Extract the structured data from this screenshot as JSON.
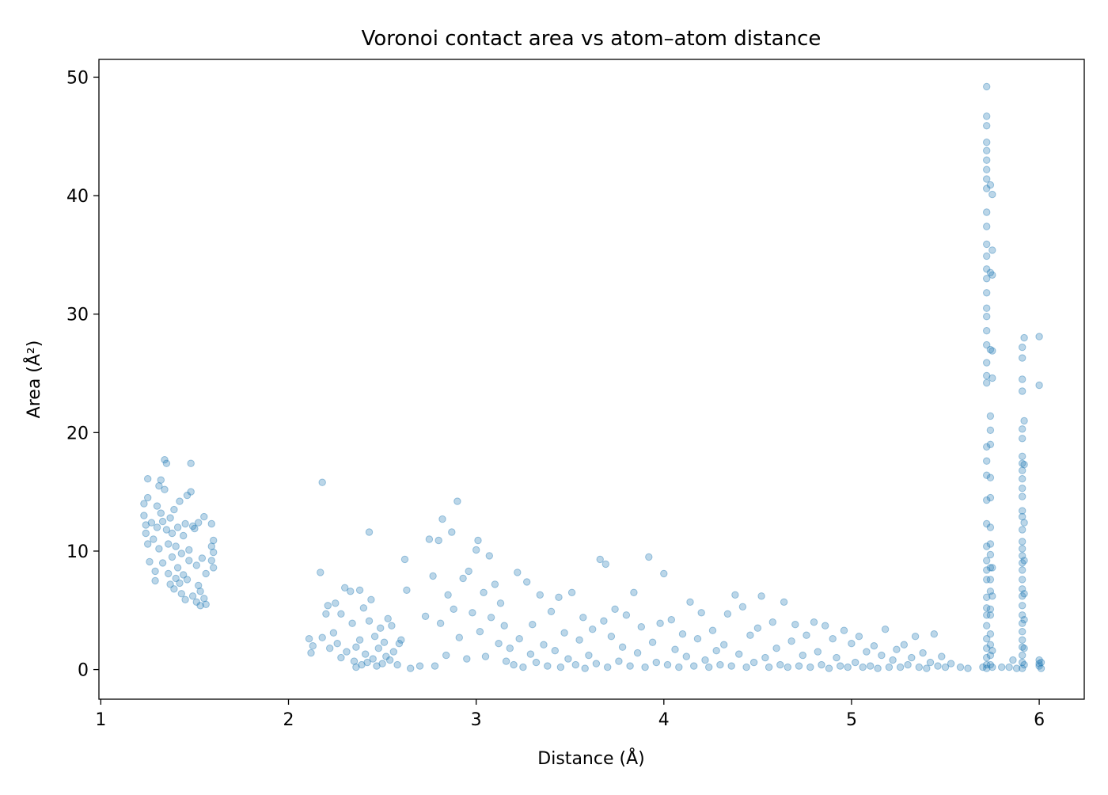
{
  "chart_data": {
    "type": "scatter",
    "title": "Voronoi contact area vs atom–atom distance",
    "xlabel": "Distance (Å)",
    "ylabel": "Area (Å²)",
    "xlim": [
      0.99,
      6.24
    ],
    "ylim": [
      -2.5,
      51.5
    ],
    "xticks": [
      1,
      2,
      3,
      4,
      5,
      6
    ],
    "yticks": [
      0,
      10,
      20,
      30,
      40,
      50
    ],
    "grid": false,
    "legend": "none",
    "marker_color": "#1f77b4",
    "marker_opacity": 0.3,
    "points": [
      [
        1.23,
        14.0
      ],
      [
        1.23,
        13.0
      ],
      [
        1.24,
        12.2
      ],
      [
        1.24,
        11.5
      ],
      [
        1.25,
        16.1
      ],
      [
        1.25,
        14.5
      ],
      [
        1.25,
        10.6
      ],
      [
        1.26,
        9.1
      ],
      [
        1.27,
        12.4
      ],
      [
        1.28,
        11.0
      ],
      [
        1.29,
        8.3
      ],
      [
        1.29,
        7.5
      ],
      [
        1.3,
        13.8
      ],
      [
        1.3,
        12.0
      ],
      [
        1.31,
        15.5
      ],
      [
        1.31,
        10.2
      ],
      [
        1.32,
        16.0
      ],
      [
        1.32,
        13.2
      ],
      [
        1.33,
        12.5
      ],
      [
        1.33,
        9.0
      ],
      [
        1.34,
        17.7
      ],
      [
        1.34,
        15.2
      ],
      [
        1.35,
        17.4
      ],
      [
        1.35,
        11.8
      ],
      [
        1.36,
        10.6
      ],
      [
        1.36,
        8.1
      ],
      [
        1.37,
        12.8
      ],
      [
        1.37,
        7.2
      ],
      [
        1.38,
        11.5
      ],
      [
        1.38,
        9.5
      ],
      [
        1.39,
        13.5
      ],
      [
        1.39,
        6.8
      ],
      [
        1.4,
        7.7
      ],
      [
        1.4,
        10.4
      ],
      [
        1.41,
        12.0
      ],
      [
        1.41,
        8.6
      ],
      [
        1.42,
        7.3
      ],
      [
        1.42,
        14.2
      ],
      [
        1.43,
        9.8
      ],
      [
        1.43,
        6.4
      ],
      [
        1.44,
        11.3
      ],
      [
        1.44,
        8.0
      ],
      [
        1.45,
        12.3
      ],
      [
        1.45,
        5.9
      ],
      [
        1.46,
        14.7
      ],
      [
        1.46,
        7.6
      ],
      [
        1.47,
        10.1
      ],
      [
        1.47,
        9.2
      ],
      [
        1.48,
        17.4
      ],
      [
        1.48,
        15.0
      ],
      [
        1.49,
        12.1
      ],
      [
        1.49,
        6.2
      ],
      [
        1.5,
        11.9
      ],
      [
        1.51,
        8.8
      ],
      [
        1.51,
        5.7
      ],
      [
        1.52,
        12.4
      ],
      [
        1.52,
        7.1
      ],
      [
        1.53,
        6.6
      ],
      [
        1.53,
        5.4
      ],
      [
        1.54,
        9.4
      ],
      [
        1.55,
        12.9
      ],
      [
        1.55,
        6.0
      ],
      [
        1.56,
        8.1
      ],
      [
        1.56,
        5.5
      ],
      [
        1.59,
        10.4
      ],
      [
        1.59,
        9.2
      ],
      [
        1.59,
        12.3
      ],
      [
        1.6,
        9.9
      ],
      [
        1.6,
        8.6
      ],
      [
        1.6,
        10.9
      ],
      [
        2.11,
        2.6
      ],
      [
        2.12,
        1.4
      ],
      [
        2.13,
        2.0
      ],
      [
        2.17,
        8.2
      ],
      [
        2.18,
        15.8
      ],
      [
        2.18,
        2.7
      ],
      [
        2.2,
        4.7
      ],
      [
        2.21,
        5.4
      ],
      [
        2.22,
        1.8
      ],
      [
        2.24,
        3.1
      ],
      [
        2.25,
        5.6
      ],
      [
        2.26,
        2.2
      ],
      [
        2.28,
        1.0
      ],
      [
        2.28,
        4.7
      ],
      [
        2.3,
        6.9
      ],
      [
        2.31,
        1.5
      ],
      [
        2.33,
        6.6
      ],
      [
        2.34,
        3.9
      ],
      [
        2.35,
        0.7
      ],
      [
        2.36,
        1.9
      ],
      [
        2.36,
        0.2
      ],
      [
        2.38,
        6.7
      ],
      [
        2.38,
        2.5
      ],
      [
        2.39,
        0.4
      ],
      [
        2.4,
        5.2
      ],
      [
        2.41,
        1.3
      ],
      [
        2.42,
        0.6
      ],
      [
        2.43,
        11.6
      ],
      [
        2.43,
        4.1
      ],
      [
        2.44,
        5.9
      ],
      [
        2.45,
        0.9
      ],
      [
        2.46,
        2.8
      ],
      [
        2.47,
        0.3
      ],
      [
        2.48,
        1.8
      ],
      [
        2.49,
        3.5
      ],
      [
        2.5,
        0.5
      ],
      [
        2.51,
        2.3
      ],
      [
        2.52,
        1.1
      ],
      [
        2.53,
        4.3
      ],
      [
        2.54,
        0.8
      ],
      [
        2.55,
        3.7
      ],
      [
        2.56,
        1.5
      ],
      [
        2.58,
        0.4
      ],
      [
        2.59,
        2.2
      ],
      [
        2.6,
        2.5
      ],
      [
        2.62,
        9.3
      ],
      [
        2.63,
        6.7
      ],
      [
        2.65,
        0.1
      ],
      [
        2.7,
        0.3
      ],
      [
        2.73,
        4.5
      ],
      [
        2.75,
        11.0
      ],
      [
        2.77,
        7.9
      ],
      [
        2.78,
        0.3
      ],
      [
        2.8,
        10.9
      ],
      [
        2.81,
        3.9
      ],
      [
        2.82,
        12.7
      ],
      [
        2.84,
        1.2
      ],
      [
        2.85,
        6.3
      ],
      [
        2.87,
        11.6
      ],
      [
        2.88,
        5.1
      ],
      [
        2.9,
        14.2
      ],
      [
        2.91,
        2.7
      ],
      [
        2.93,
        7.7
      ],
      [
        2.95,
        0.9
      ],
      [
        2.96,
        8.3
      ],
      [
        2.98,
        4.8
      ],
      [
        3.0,
        10.1
      ],
      [
        3.01,
        10.9
      ],
      [
        3.02,
        3.2
      ],
      [
        3.04,
        6.5
      ],
      [
        3.05,
        1.1
      ],
      [
        3.07,
        9.6
      ],
      [
        3.08,
        4.4
      ],
      [
        3.1,
        7.2
      ],
      [
        3.12,
        2.2
      ],
      [
        3.13,
        5.6
      ],
      [
        3.15,
        3.7
      ],
      [
        3.16,
        0.7
      ],
      [
        3.18,
        1.8
      ],
      [
        3.2,
        0.4
      ],
      [
        3.22,
        8.2
      ],
      [
        3.23,
        2.6
      ],
      [
        3.25,
        0.2
      ],
      [
        3.27,
        7.4
      ],
      [
        3.29,
        1.3
      ],
      [
        3.3,
        3.8
      ],
      [
        3.32,
        0.6
      ],
      [
        3.34,
        6.3
      ],
      [
        3.36,
        2.1
      ],
      [
        3.38,
        0.3
      ],
      [
        3.4,
        4.9
      ],
      [
        3.42,
        1.6
      ],
      [
        3.44,
        6.1
      ],
      [
        3.45,
        0.2
      ],
      [
        3.47,
        3.1
      ],
      [
        3.49,
        0.9
      ],
      [
        3.51,
        6.5
      ],
      [
        3.53,
        0.4
      ],
      [
        3.55,
        2.5
      ],
      [
        3.57,
        4.4
      ],
      [
        3.58,
        0.1
      ],
      [
        3.6,
        1.2
      ],
      [
        3.62,
        3.4
      ],
      [
        3.64,
        0.5
      ],
      [
        3.66,
        9.3
      ],
      [
        3.68,
        4.1
      ],
      [
        3.69,
        8.9
      ],
      [
        3.7,
        0.2
      ],
      [
        3.72,
        2.8
      ],
      [
        3.74,
        5.1
      ],
      [
        3.76,
        0.7
      ],
      [
        3.78,
        1.9
      ],
      [
        3.8,
        4.6
      ],
      [
        3.82,
        0.3
      ],
      [
        3.84,
        6.5
      ],
      [
        3.86,
        1.4
      ],
      [
        3.88,
        3.6
      ],
      [
        3.9,
        0.2
      ],
      [
        3.92,
        9.5
      ],
      [
        3.94,
        2.3
      ],
      [
        3.96,
        0.6
      ],
      [
        3.98,
        3.9
      ],
      [
        4.0,
        8.1
      ],
      [
        4.02,
        0.4
      ],
      [
        4.04,
        4.2
      ],
      [
        4.06,
        1.7
      ],
      [
        4.08,
        0.2
      ],
      [
        4.1,
        3.0
      ],
      [
        4.12,
        1.1
      ],
      [
        4.14,
        5.7
      ],
      [
        4.16,
        0.3
      ],
      [
        4.18,
        2.6
      ],
      [
        4.2,
        4.8
      ],
      [
        4.22,
        0.8
      ],
      [
        4.24,
        0.2
      ],
      [
        4.26,
        3.3
      ],
      [
        4.28,
        1.6
      ],
      [
        4.3,
        0.4
      ],
      [
        4.32,
        2.1
      ],
      [
        4.34,
        4.7
      ],
      [
        4.36,
        0.3
      ],
      [
        4.38,
        6.3
      ],
      [
        4.4,
        1.3
      ],
      [
        4.42,
        5.3
      ],
      [
        4.44,
        0.2
      ],
      [
        4.46,
        2.9
      ],
      [
        4.48,
        0.6
      ],
      [
        4.5,
        3.5
      ],
      [
        4.52,
        6.2
      ],
      [
        4.54,
        1.0
      ],
      [
        4.56,
        0.2
      ],
      [
        4.58,
        4.0
      ],
      [
        4.6,
        1.8
      ],
      [
        4.62,
        0.4
      ],
      [
        4.64,
        5.7
      ],
      [
        4.66,
        0.2
      ],
      [
        4.68,
        2.4
      ],
      [
        4.7,
        3.8
      ],
      [
        4.72,
        0.3
      ],
      [
        4.74,
        1.2
      ],
      [
        4.76,
        2.9
      ],
      [
        4.78,
        0.2
      ],
      [
        4.8,
        4.0
      ],
      [
        4.82,
        1.5
      ],
      [
        4.84,
        0.4
      ],
      [
        4.86,
        3.7
      ],
      [
        4.88,
        0.1
      ],
      [
        4.9,
        2.6
      ],
      [
        4.92,
        1.0
      ],
      [
        4.94,
        0.3
      ],
      [
        4.96,
        3.3
      ],
      [
        4.98,
        0.2
      ],
      [
        5.0,
        2.2
      ],
      [
        5.02,
        0.6
      ],
      [
        5.04,
        2.8
      ],
      [
        5.06,
        0.2
      ],
      [
        5.08,
        1.5
      ],
      [
        5.1,
        0.3
      ],
      [
        5.12,
        2.0
      ],
      [
        5.14,
        0.1
      ],
      [
        5.16,
        1.2
      ],
      [
        5.18,
        3.4
      ],
      [
        5.2,
        0.2
      ],
      [
        5.22,
        0.8
      ],
      [
        5.24,
        1.7
      ],
      [
        5.26,
        0.2
      ],
      [
        5.28,
        2.1
      ],
      [
        5.3,
        0.4
      ],
      [
        5.32,
        1.0
      ],
      [
        5.34,
        2.8
      ],
      [
        5.36,
        0.2
      ],
      [
        5.38,
        1.4
      ],
      [
        5.4,
        0.1
      ],
      [
        5.42,
        0.6
      ],
      [
        5.44,
        3.0
      ],
      [
        5.46,
        0.3
      ],
      [
        5.48,
        1.1
      ],
      [
        5.5,
        0.2
      ],
      [
        5.53,
        0.5
      ],
      [
        5.58,
        0.2
      ],
      [
        5.62,
        0.1
      ],
      [
        5.7,
        0.2
      ],
      [
        5.72,
        49.2
      ],
      [
        5.72,
        46.7
      ],
      [
        5.72,
        45.9
      ],
      [
        5.72,
        44.5
      ],
      [
        5.72,
        43.8
      ],
      [
        5.72,
        43.0
      ],
      [
        5.72,
        42.2
      ],
      [
        5.72,
        41.4
      ],
      [
        5.72,
        40.6
      ],
      [
        5.72,
        38.6
      ],
      [
        5.72,
        37.4
      ],
      [
        5.72,
        35.9
      ],
      [
        5.72,
        34.9
      ],
      [
        5.72,
        33.8
      ],
      [
        5.72,
        33.0
      ],
      [
        5.72,
        31.8
      ],
      [
        5.72,
        30.5
      ],
      [
        5.72,
        29.8
      ],
      [
        5.72,
        28.6
      ],
      [
        5.72,
        27.4
      ],
      [
        5.72,
        25.9
      ],
      [
        5.72,
        24.8
      ],
      [
        5.72,
        24.2
      ],
      [
        5.72,
        18.8
      ],
      [
        5.72,
        17.6
      ],
      [
        5.72,
        16.4
      ],
      [
        5.72,
        14.3
      ],
      [
        5.72,
        12.3
      ],
      [
        5.72,
        10.4
      ],
      [
        5.72,
        9.2
      ],
      [
        5.72,
        8.4
      ],
      [
        5.72,
        7.6
      ],
      [
        5.72,
        6.1
      ],
      [
        5.72,
        5.2
      ],
      [
        5.72,
        4.6
      ],
      [
        5.72,
        3.7
      ],
      [
        5.72,
        2.6
      ],
      [
        5.72,
        1.8
      ],
      [
        5.72,
        1.0
      ],
      [
        5.72,
        0.4
      ],
      [
        5.72,
        0.1
      ],
      [
        5.74,
        40.9
      ],
      [
        5.74,
        33.5
      ],
      [
        5.74,
        27.0
      ],
      [
        5.74,
        21.4
      ],
      [
        5.74,
        20.2
      ],
      [
        5.74,
        19.0
      ],
      [
        5.74,
        16.2
      ],
      [
        5.74,
        14.5
      ],
      [
        5.74,
        12.0
      ],
      [
        5.74,
        10.6
      ],
      [
        5.74,
        9.7
      ],
      [
        5.74,
        8.6
      ],
      [
        5.74,
        7.6
      ],
      [
        5.74,
        6.6
      ],
      [
        5.74,
        5.1
      ],
      [
        5.74,
        4.6
      ],
      [
        5.74,
        3.0
      ],
      [
        5.74,
        2.1
      ],
      [
        5.74,
        1.2
      ],
      [
        5.74,
        0.4
      ],
      [
        5.75,
        40.1
      ],
      [
        5.75,
        35.4
      ],
      [
        5.75,
        33.3
      ],
      [
        5.75,
        26.9
      ],
      [
        5.75,
        24.6
      ],
      [
        5.75,
        8.6
      ],
      [
        5.75,
        6.2
      ],
      [
        5.75,
        1.6
      ],
      [
        5.75,
        0.2
      ],
      [
        5.8,
        0.2
      ],
      [
        5.84,
        0.2
      ],
      [
        5.86,
        0.8
      ],
      [
        5.88,
        0.1
      ],
      [
        5.91,
        27.2
      ],
      [
        5.91,
        26.3
      ],
      [
        5.91,
        24.5
      ],
      [
        5.91,
        23.5
      ],
      [
        5.91,
        20.3
      ],
      [
        5.91,
        19.5
      ],
      [
        5.91,
        18.0
      ],
      [
        5.91,
        17.4
      ],
      [
        5.91,
        16.8
      ],
      [
        5.91,
        16.1
      ],
      [
        5.91,
        15.3
      ],
      [
        5.91,
        14.6
      ],
      [
        5.91,
        13.4
      ],
      [
        5.91,
        12.9
      ],
      [
        5.91,
        11.8
      ],
      [
        5.91,
        10.8
      ],
      [
        5.91,
        10.2
      ],
      [
        5.91,
        9.6
      ],
      [
        5.91,
        9.0
      ],
      [
        5.91,
        8.4
      ],
      [
        5.91,
        7.6
      ],
      [
        5.91,
        6.8
      ],
      [
        5.91,
        6.2
      ],
      [
        5.91,
        5.4
      ],
      [
        5.91,
        4.6
      ],
      [
        5.91,
        3.9
      ],
      [
        5.91,
        3.2
      ],
      [
        5.91,
        2.5
      ],
      [
        5.91,
        1.9
      ],
      [
        5.91,
        1.2
      ],
      [
        5.91,
        0.6
      ],
      [
        5.91,
        0.1
      ],
      [
        5.92,
        28.0
      ],
      [
        5.92,
        21.0
      ],
      [
        5.92,
        17.3
      ],
      [
        5.92,
        12.4
      ],
      [
        5.92,
        9.2
      ],
      [
        5.92,
        6.4
      ],
      [
        5.92,
        4.2
      ],
      [
        5.92,
        1.8
      ],
      [
        5.92,
        0.4
      ],
      [
        6.0,
        28.1
      ],
      [
        6.0,
        24.0
      ],
      [
        6.0,
        0.8
      ],
      [
        6.0,
        0.5
      ],
      [
        6.0,
        0.3
      ],
      [
        6.01,
        0.6
      ],
      [
        6.01,
        0.1
      ]
    ]
  }
}
